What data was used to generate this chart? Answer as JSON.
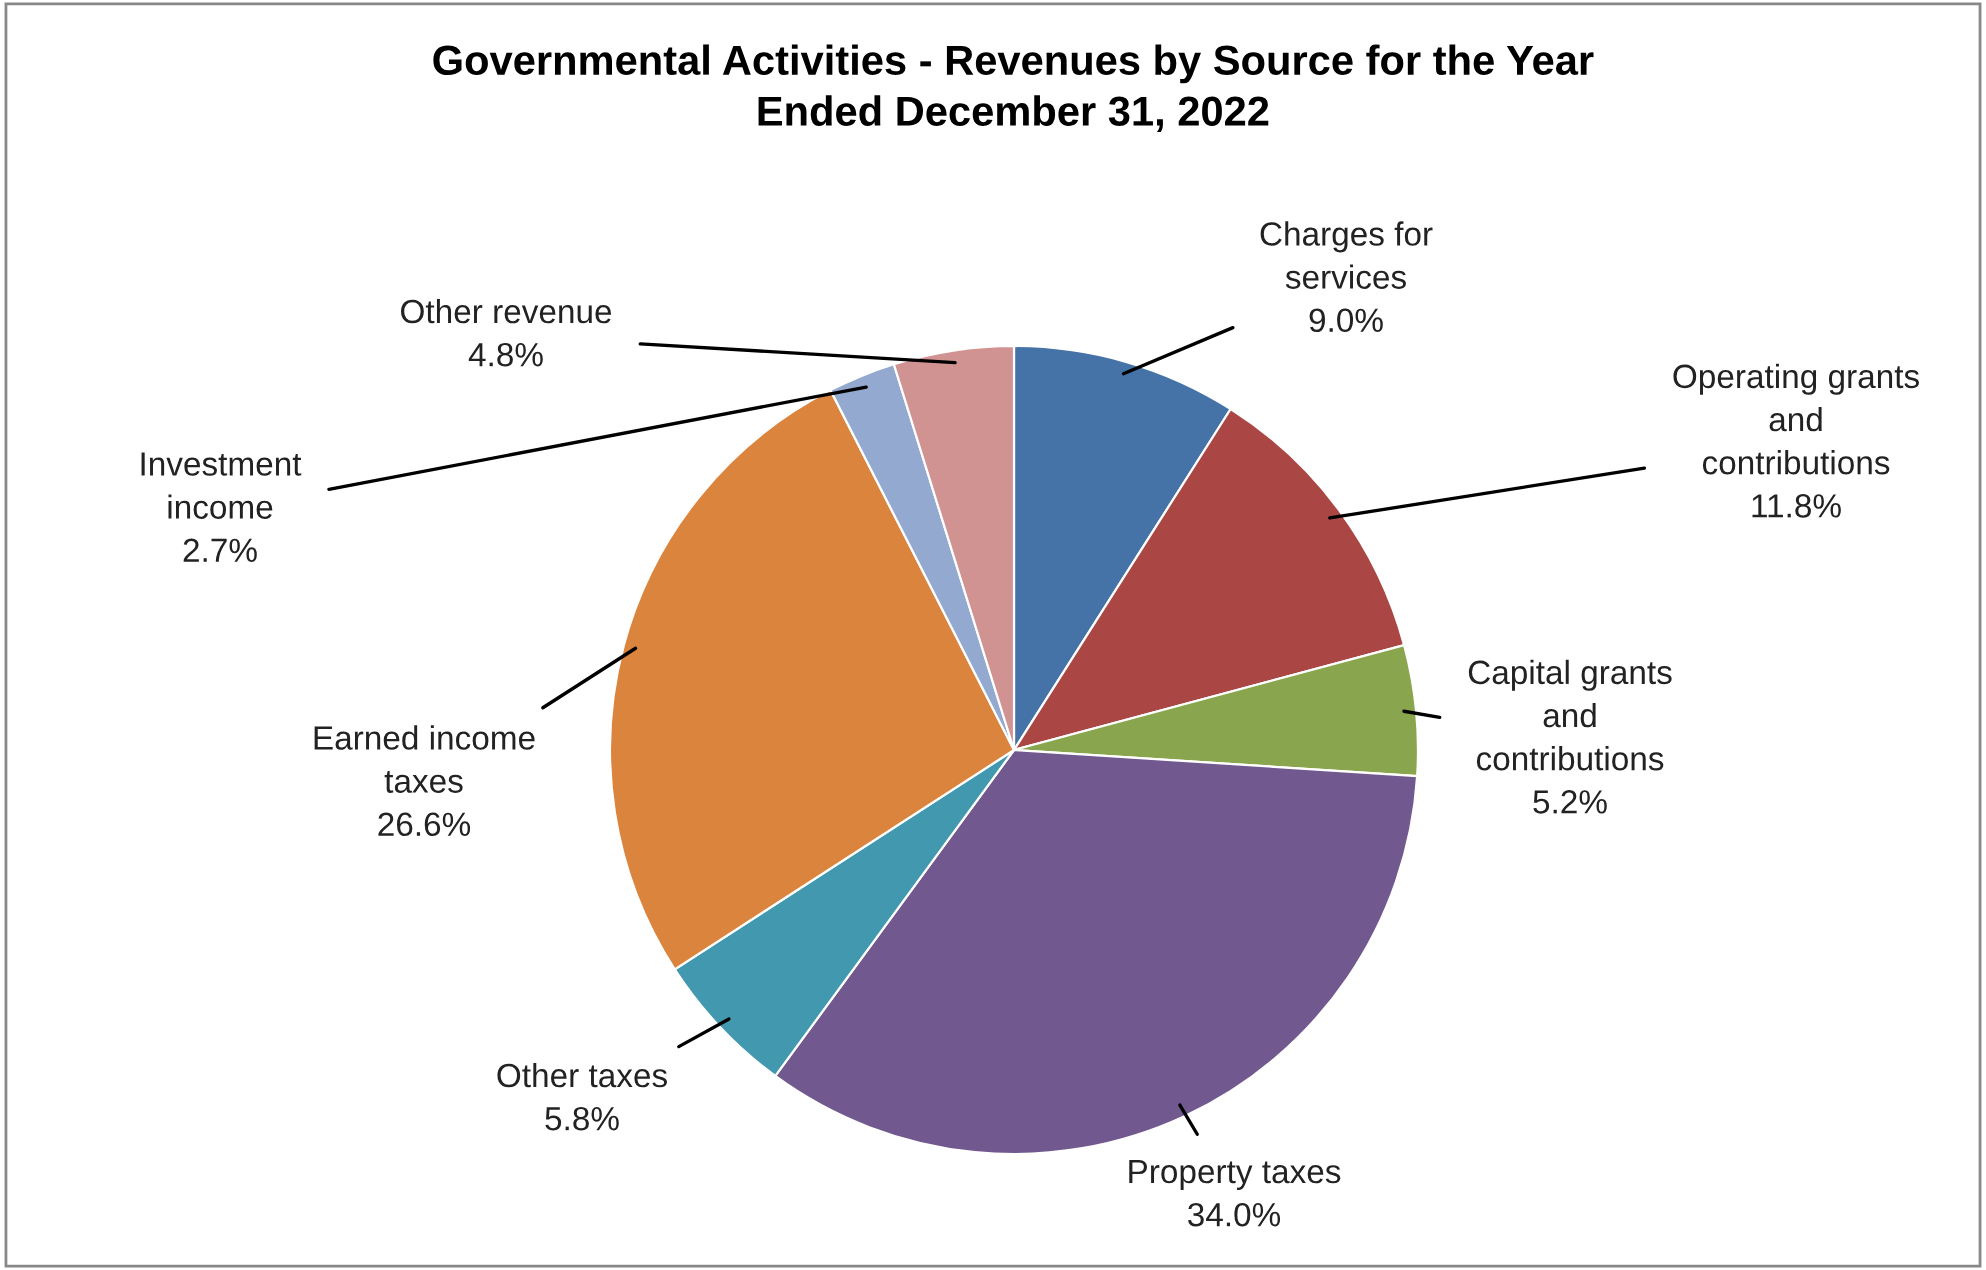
{
  "chart_data": {
    "type": "pie",
    "title": "Governmental Activities - Revenues by Source for the Year Ended December 31, 2022",
    "categories": [
      "Charges for services",
      "Operating grants and contributions",
      "Capital grants and contributions",
      "Property taxes",
      "Other taxes",
      "Earned income taxes",
      "Investment income",
      "Other revenue"
    ],
    "values": [
      9.0,
      11.8,
      5.2,
      34.0,
      5.8,
      26.6,
      2.7,
      4.8
    ],
    "colors": [
      "#4572a7",
      "#aa4643",
      "#89a54e",
      "#71588f",
      "#4198af",
      "#db843d",
      "#93a9cf",
      "#d19392"
    ],
    "value_labels": [
      "9.0%",
      "11.8%",
      "5.2%",
      "34.0%",
      "5.8%",
      "26.6%",
      "2.7%",
      "4.8%"
    ],
    "legend": false
  }
}
